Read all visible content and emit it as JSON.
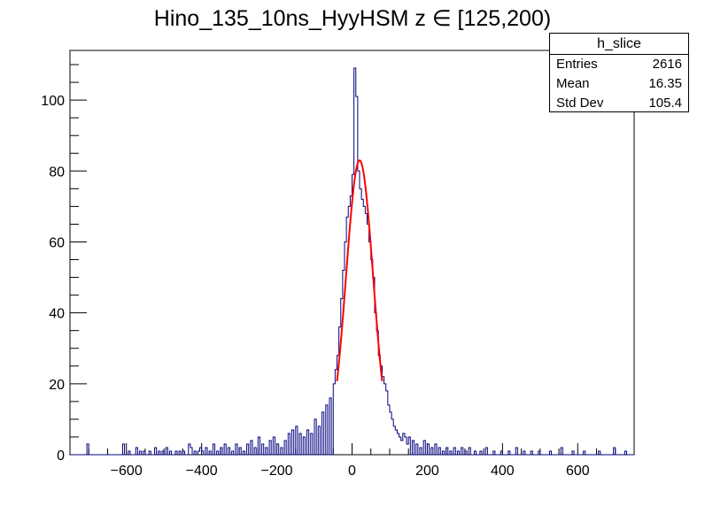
{
  "chart_data": {
    "type": "histogram",
    "title": "Hino_135_10ns_HyyHSM z  ∈ [125,200)",
    "xlabel": "",
    "ylabel": "",
    "xlim": [
      -750,
      750
    ],
    "ylim": [
      0,
      114
    ],
    "bin_width": 5,
    "x_ticks": [
      -600,
      -400,
      -200,
      0,
      200,
      400,
      600
    ],
    "x_tick_labels": [
      "−600",
      "−400",
      "−200",
      "0",
      "200",
      "400",
      "600"
    ],
    "y_ticks": [
      0,
      20,
      40,
      60,
      80,
      100
    ],
    "y_tick_labels": [
      "0",
      "20",
      "40",
      "60",
      "80",
      "100"
    ],
    "grid": false,
    "histogram_color": "#00007f",
    "fit_color": "#ff0000",
    "fit": {
      "function": "gaus",
      "constant": 83,
      "mean": 20,
      "sigma": 36,
      "range": [
        -40,
        80
      ]
    },
    "bins_x": [
      -700,
      -605,
      -590,
      -570,
      -560,
      -550,
      -535,
      -520,
      -510,
      -500,
      -490,
      -480,
      -465,
      -455,
      -445,
      -430,
      -425,
      -415,
      -405,
      -400,
      -395,
      -385,
      -375,
      -365,
      -355,
      -345,
      -335,
      -325,
      -315,
      -305,
      -295,
      -285,
      -275,
      -265,
      -255,
      -245,
      -235,
      -225,
      -215,
      -205,
      -195,
      -185,
      -175,
      -165,
      -155,
      -145,
      -135,
      -125,
      -115,
      -105,
      -95,
      -85,
      -75,
      -65,
      -55,
      -45,
      -40,
      -35,
      -30,
      -25,
      -20,
      -15,
      -10,
      -5,
      0,
      5,
      10,
      15,
      20,
      25,
      30,
      35,
      40,
      45,
      50,
      55,
      60,
      65,
      70,
      75,
      80,
      85,
      90,
      95,
      100,
      105,
      110,
      115,
      120,
      125,
      130,
      135,
      140,
      145,
      150,
      155,
      165,
      175,
      185,
      195,
      205,
      215,
      225,
      235,
      245,
      255,
      265,
      275,
      285,
      295,
      305,
      315,
      330,
      345,
      360,
      380,
      400,
      420,
      440,
      460,
      480,
      500,
      530,
      560,
      590,
      620,
      660,
      700,
      730
    ],
    "bins_y": [
      3,
      3,
      1,
      2,
      1,
      1,
      1,
      2,
      1,
      1,
      2,
      1,
      1,
      1,
      1,
      3,
      2,
      1,
      1,
      2,
      1,
      2,
      1,
      3,
      1,
      2,
      3,
      2,
      1,
      3,
      2,
      1,
      3,
      4,
      2,
      5,
      3,
      2,
      4,
      5,
      3,
      2,
      4,
      6,
      7,
      8,
      6,
      5,
      7,
      6,
      10,
      8,
      12,
      14,
      16,
      20,
      24,
      28,
      36,
      44,
      52,
      60,
      67,
      70,
      73,
      79,
      109,
      101,
      80,
      75,
      72,
      70,
      68,
      65,
      60,
      55,
      50,
      40,
      35,
      28,
      25,
      22,
      20,
      18,
      14,
      12,
      10,
      8,
      7,
      6,
      5,
      4,
      6,
      5,
      3,
      5,
      4,
      3,
      2,
      4,
      3,
      2,
      3,
      2,
      1,
      2,
      1,
      2,
      1,
      2,
      1,
      2,
      1,
      1,
      2,
      1,
      1,
      1,
      2,
      1,
      1,
      1,
      1,
      2,
      1,
      1,
      1,
      2,
      1
    ]
  },
  "stats": {
    "name": "h_slice",
    "rows": [
      {
        "label": "Entries",
        "value": "2616"
      },
      {
        "label": "Mean",
        "value": "16.35"
      },
      {
        "label": "Std Dev",
        "value": "105.4"
      }
    ]
  }
}
